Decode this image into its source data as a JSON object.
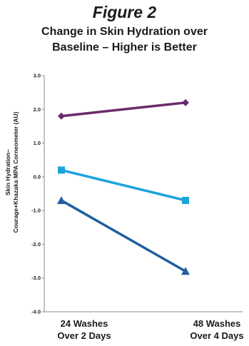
{
  "figure_label": "Figure 2",
  "chart_data": {
    "type": "line",
    "title": "Change in Skin Hydration over Baseline – Higher is Better",
    "ylabel_line1": "Skin Hydration–",
    "ylabel_line2": "Courage+Khazaka MPA Corneometer (AU)",
    "categories": [
      [
        "24 Washes",
        "Over 2 Days"
      ],
      [
        "48 Washes",
        "Over 4 Days"
      ]
    ],
    "ylim": [
      -4.0,
      3.0
    ],
    "yticks": [
      "3.0",
      "2.0",
      "1.0",
      "0.0",
      "-1.0",
      "-2.0",
      "-3.0",
      "-4.0"
    ],
    "grid": false,
    "series": [
      {
        "values": [
          1.8,
          2.2
        ],
        "color": "#6b2c6b",
        "marker": "diamond"
      },
      {
        "values": [
          0.2,
          -0.7
        ],
        "color": "#1da3dc",
        "marker": "square"
      },
      {
        "values": [
          -0.7,
          -2.8
        ],
        "color": "#1f5fa0",
        "marker": "triangle"
      }
    ]
  }
}
